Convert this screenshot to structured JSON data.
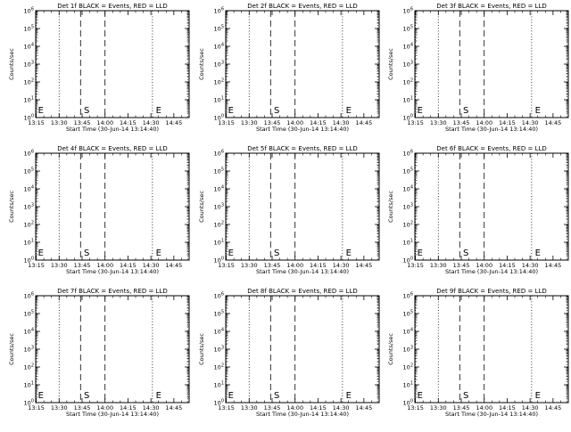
{
  "chart_data": [
    {
      "type": "line",
      "title": "Det 1f BLACK = Events, RED = LLD",
      "xlabel": "Start Time (30-Jun-14 13:14:40)",
      "ylabel": "Counts/sec",
      "x_tick_labels": [
        "13:15",
        "13:30",
        "13:45",
        "14:00",
        "14:15",
        "14:30",
        "14:45"
      ],
      "y_tick_labels": [
        "10^{0}",
        "10^{1}",
        "10^{2}",
        "10^{3}",
        "10^{4}",
        "10^{5}",
        "10^{6}"
      ],
      "y_scale": "log",
      "ylim": [
        1,
        1000000
      ],
      "xlim": [
        "13:14:40",
        "14:55"
      ],
      "dotted_lines": [
        "13:15",
        "13:30",
        "14:31",
        "14:54"
      ],
      "dashed_lines": [
        "13:44",
        "14:00"
      ],
      "markers": [
        {
          "label": "E",
          "x": "13:15"
        },
        {
          "label": "S",
          "x": "13:45"
        },
        {
          "label": "E",
          "x": "14:32"
        }
      ],
      "series": []
    },
    {
      "type": "line",
      "title": "Det 2f BLACK = Events, RED = LLD",
      "xlabel": "Start Time (30-Jun-14 13:14:40)",
      "ylabel": "Counts/sec",
      "x_tick_labels": [
        "13:15",
        "13:30",
        "13:45",
        "14:00",
        "14:15",
        "14:30",
        "14:45"
      ],
      "y_tick_labels": [
        "10^{0}",
        "10^{1}",
        "10^{2}",
        "10^{3}",
        "10^{4}",
        "10^{5}",
        "10^{6}"
      ],
      "y_scale": "log",
      "ylim": [
        1,
        1000000
      ],
      "xlim": [
        "13:14:40",
        "14:55"
      ],
      "dotted_lines": [
        "13:15",
        "13:30",
        "14:31",
        "14:54"
      ],
      "dashed_lines": [
        "13:44",
        "14:00"
      ],
      "markers": [
        {
          "label": "E",
          "x": "13:15"
        },
        {
          "label": "S",
          "x": "13:45"
        },
        {
          "label": "E",
          "x": "14:32"
        }
      ],
      "series": []
    },
    {
      "type": "line",
      "title": "Det 3f BLACK = Events, RED = LLD",
      "xlabel": "Start Time (30-Jun-14 13:14:40)",
      "ylabel": "Counts/sec",
      "x_tick_labels": [
        "13:15",
        "13:30",
        "13:45",
        "14:00",
        "14:15",
        "14:30",
        "14:45"
      ],
      "y_tick_labels": [
        "10^{0}",
        "10^{1}",
        "10^{2}",
        "10^{3}",
        "10^{4}",
        "10^{5}",
        "10^{6}"
      ],
      "y_scale": "log",
      "ylim": [
        1,
        1000000
      ],
      "xlim": [
        "13:14:40",
        "14:55"
      ],
      "dotted_lines": [
        "13:15",
        "13:30",
        "14:31",
        "14:54"
      ],
      "dashed_lines": [
        "13:44",
        "14:00"
      ],
      "markers": [
        {
          "label": "E",
          "x": "13:15"
        },
        {
          "label": "S",
          "x": "13:45"
        },
        {
          "label": "E",
          "x": "14:32"
        }
      ],
      "series": []
    },
    {
      "type": "line",
      "title": "Det 4f BLACK = Events, RED = LLD",
      "xlabel": "Start Time (30-Jun-14 13:14:40)",
      "ylabel": "Counts/sec",
      "x_tick_labels": [
        "13:15",
        "13:30",
        "13:45",
        "14:00",
        "14:15",
        "14:30",
        "14:45"
      ],
      "y_tick_labels": [
        "10^{0}",
        "10^{1}",
        "10^{2}",
        "10^{3}",
        "10^{4}",
        "10^{5}",
        "10^{6}"
      ],
      "y_scale": "log",
      "ylim": [
        1,
        1000000
      ],
      "xlim": [
        "13:14:40",
        "14:55"
      ],
      "dotted_lines": [
        "13:15",
        "13:30",
        "14:31",
        "14:54"
      ],
      "dashed_lines": [
        "13:44",
        "14:00"
      ],
      "markers": [
        {
          "label": "E",
          "x": "13:15"
        },
        {
          "label": "S",
          "x": "13:45"
        },
        {
          "label": "E",
          "x": "14:32"
        }
      ],
      "series": []
    },
    {
      "type": "line",
      "title": "Det 5f BLACK = Events, RED = LLD",
      "xlabel": "Start Time (30-Jun-14 13:14:40)",
      "ylabel": "Counts/sec",
      "x_tick_labels": [
        "13:15",
        "13:30",
        "13:45",
        "14:00",
        "14:15",
        "14:30",
        "14:45"
      ],
      "y_tick_labels": [
        "10^{0}",
        "10^{1}",
        "10^{2}",
        "10^{3}",
        "10^{4}",
        "10^{5}",
        "10^{6}"
      ],
      "y_scale": "log",
      "ylim": [
        1,
        1000000
      ],
      "xlim": [
        "13:14:40",
        "14:55"
      ],
      "dotted_lines": [
        "13:15",
        "13:30",
        "14:31",
        "14:54"
      ],
      "dashed_lines": [
        "13:44",
        "14:00"
      ],
      "markers": [
        {
          "label": "E",
          "x": "13:15"
        },
        {
          "label": "S",
          "x": "13:45"
        },
        {
          "label": "E",
          "x": "14:32"
        }
      ],
      "series": []
    },
    {
      "type": "line",
      "title": "Det 6f BLACK = Events, RED = LLD",
      "xlabel": "Start Time (30-Jun-14 13:14:40)",
      "ylabel": "Counts/sec",
      "x_tick_labels": [
        "13:15",
        "13:30",
        "13:45",
        "14:00",
        "14:15",
        "14:30",
        "14:45"
      ],
      "y_tick_labels": [
        "10^{0}",
        "10^{1}",
        "10^{2}",
        "10^{3}",
        "10^{4}",
        "10^{5}",
        "10^{6}"
      ],
      "y_scale": "log",
      "ylim": [
        1,
        1000000
      ],
      "xlim": [
        "13:14:40",
        "14:55"
      ],
      "dotted_lines": [
        "13:15",
        "13:30",
        "14:31",
        "14:54"
      ],
      "dashed_lines": [
        "13:44",
        "14:00"
      ],
      "markers": [
        {
          "label": "E",
          "x": "13:15"
        },
        {
          "label": "S",
          "x": "13:45"
        },
        {
          "label": "E",
          "x": "14:32"
        }
      ],
      "series": []
    },
    {
      "type": "line",
      "title": "Det 7f BLACK = Events, RED = LLD",
      "xlabel": "Start Time (30-Jun-14 13:14:40)",
      "ylabel": "Counts/sec",
      "x_tick_labels": [
        "13:15",
        "13:30",
        "13:45",
        "14:00",
        "14:15",
        "14:30",
        "14:45"
      ],
      "y_tick_labels": [
        "10^{0}",
        "10^{1}",
        "10^{2}",
        "10^{3}",
        "10^{4}",
        "10^{5}",
        "10^{6}"
      ],
      "y_scale": "log",
      "ylim": [
        1,
        1000000
      ],
      "xlim": [
        "13:14:40",
        "14:55"
      ],
      "dotted_lines": [
        "13:15",
        "13:30",
        "14:31",
        "14:54"
      ],
      "dashed_lines": [
        "13:44",
        "14:00"
      ],
      "markers": [
        {
          "label": "E",
          "x": "13:15"
        },
        {
          "label": "S",
          "x": "13:45"
        },
        {
          "label": "E",
          "x": "14:32"
        }
      ],
      "series": []
    },
    {
      "type": "line",
      "title": "Det 8f BLACK = Events, RED = LLD",
      "xlabel": "Start Time (30-Jun-14 13:14:40)",
      "ylabel": "Counts/sec",
      "x_tick_labels": [
        "13:15",
        "13:30",
        "13:45",
        "14:00",
        "14:15",
        "14:30",
        "14:45"
      ],
      "y_tick_labels": [
        "10^{0}",
        "10^{1}",
        "10^{2}",
        "10^{3}",
        "10^{4}",
        "10^{5}",
        "10^{6}"
      ],
      "y_scale": "log",
      "ylim": [
        1,
        1000000
      ],
      "xlim": [
        "13:14:40",
        "14:55"
      ],
      "dotted_lines": [
        "13:15",
        "13:30",
        "14:31",
        "14:54"
      ],
      "dashed_lines": [
        "13:44",
        "14:00"
      ],
      "markers": [
        {
          "label": "E",
          "x": "13:15"
        },
        {
          "label": "S",
          "x": "13:45"
        },
        {
          "label": "E",
          "x": "14:32"
        }
      ],
      "series": []
    },
    {
      "type": "line",
      "title": "Det 9f BLACK = Events, RED = LLD",
      "xlabel": "Start Time (30-Jun-14 13:14:40)",
      "ylabel": "Counts/sec",
      "x_tick_labels": [
        "13:15",
        "13:30",
        "13:45",
        "14:00",
        "14:15",
        "14:30",
        "14:45"
      ],
      "y_tick_labels": [
        "10^{0}",
        "10^{1}",
        "10^{2}",
        "10^{3}",
        "10^{4}",
        "10^{5}",
        "10^{6}"
      ],
      "y_scale": "log",
      "ylim": [
        1,
        1000000
      ],
      "xlim": [
        "13:14:40",
        "14:55"
      ],
      "dotted_lines": [
        "13:15",
        "13:30",
        "14:31",
        "14:54"
      ],
      "dashed_lines": [
        "13:44",
        "14:00"
      ],
      "markers": [
        {
          "label": "E",
          "x": "13:15"
        },
        {
          "label": "S",
          "x": "13:45"
        },
        {
          "label": "E",
          "x": "14:32"
        }
      ],
      "series": []
    }
  ]
}
